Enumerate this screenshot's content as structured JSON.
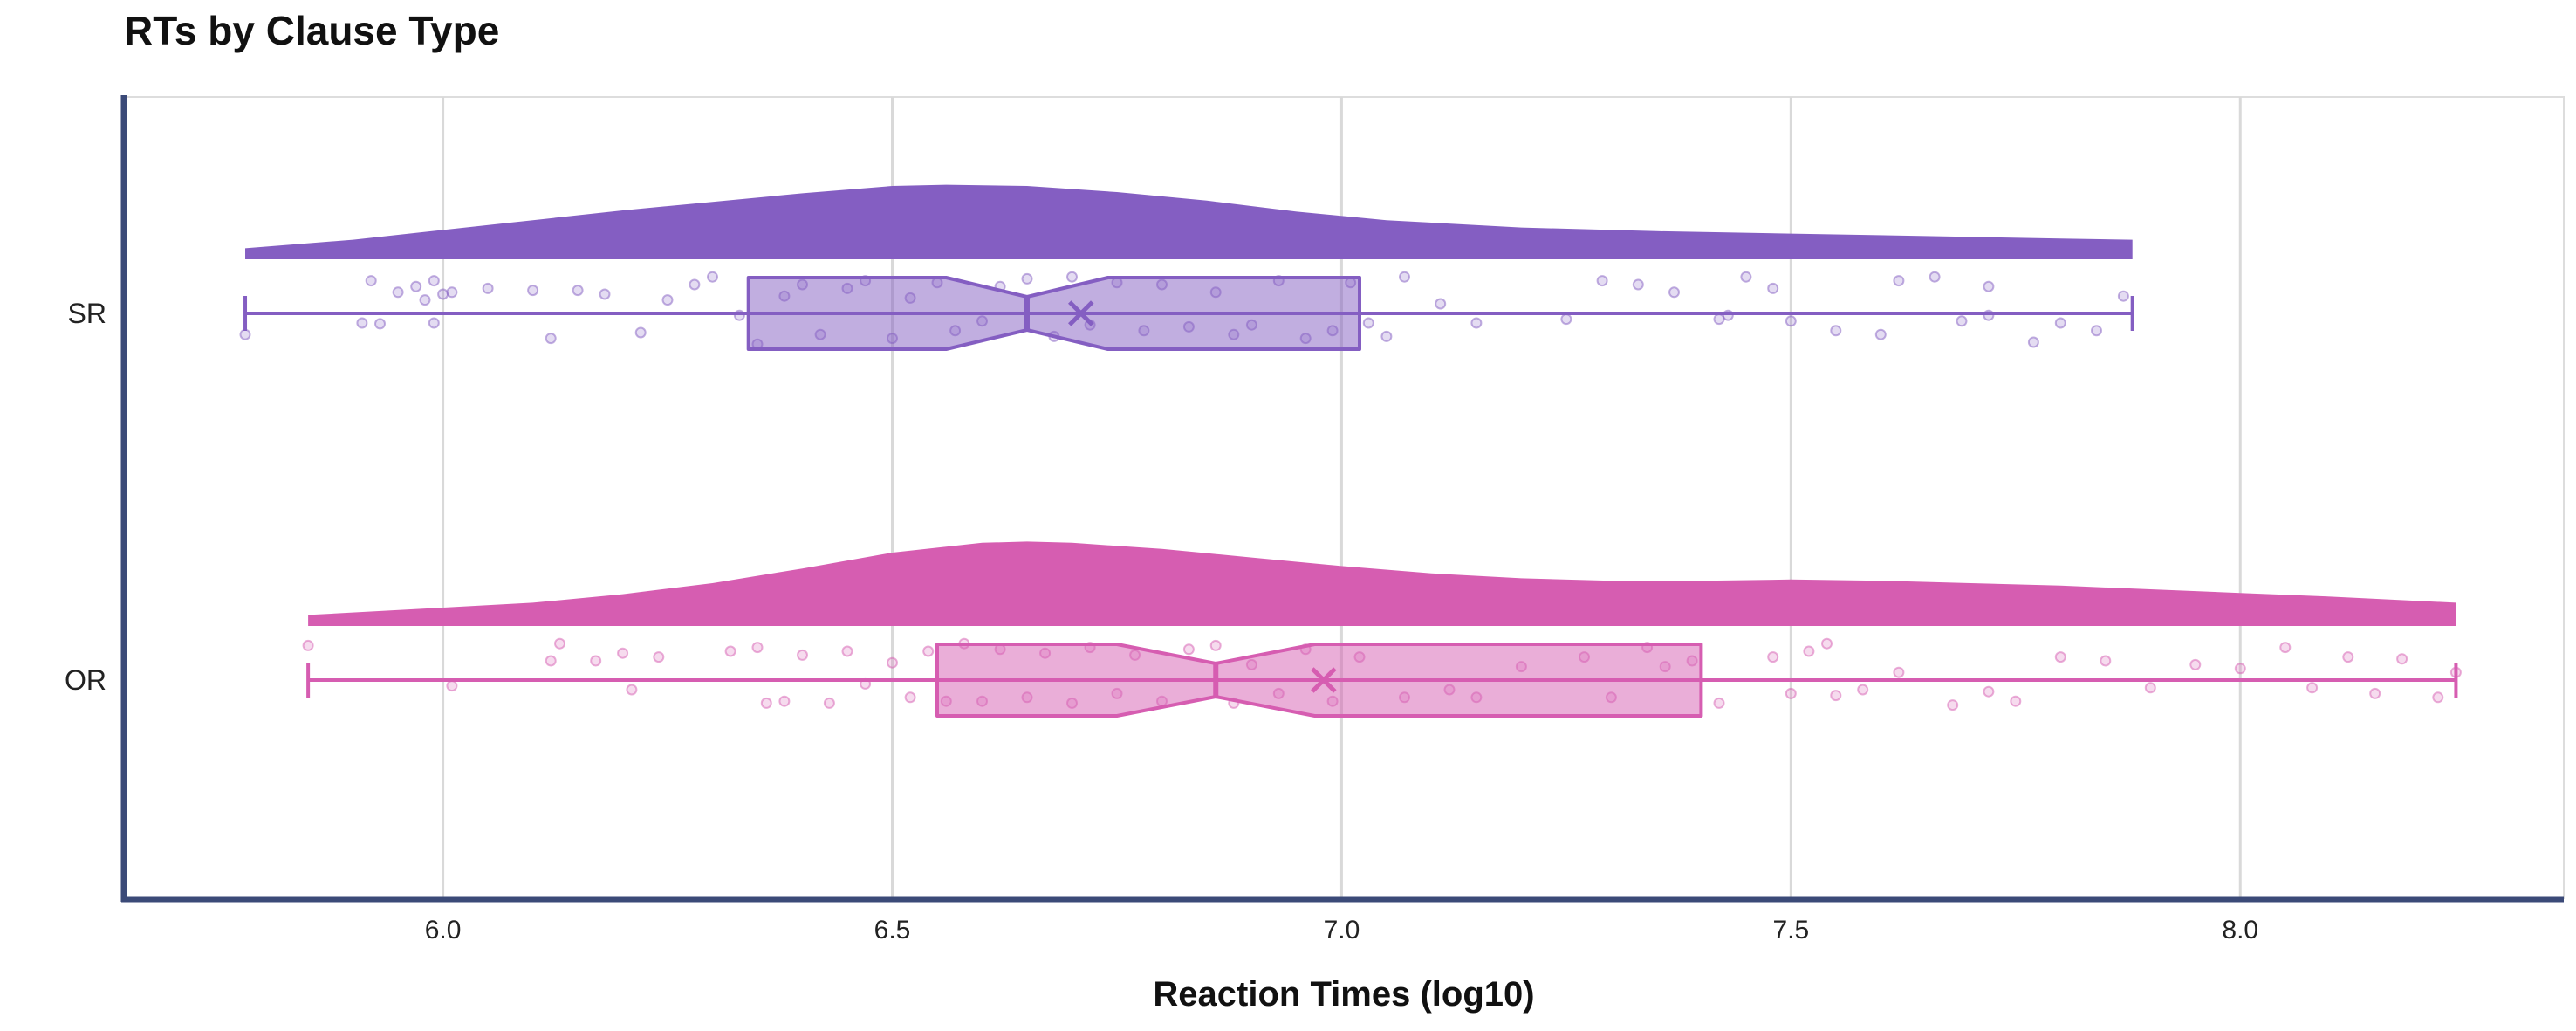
{
  "chart_data": {
    "type": "raincloud",
    "title": "RTs by Clause Type",
    "xlabel": "Reaction Times (log10)",
    "ylabel": "",
    "xlim": [
      5.645,
      8.36
    ],
    "xticks": [
      6.0,
      6.5,
      7.0,
      7.5,
      8.0
    ],
    "xtick_labels": [
      "6.0",
      "6.5",
      "7.0",
      "7.5",
      "8.0"
    ],
    "grid": true,
    "categories": [
      "SR",
      "OR"
    ],
    "series": [
      {
        "name": "SR",
        "color": "#845EC2",
        "box": {
          "min": 5.78,
          "q1": 6.34,
          "median": 6.65,
          "q3": 7.02,
          "max": 7.88,
          "mean": 6.71,
          "notch_low": 6.56,
          "notch_high": 6.74
        },
        "density": [
          [
            5.78,
            0.09
          ],
          [
            5.9,
            0.16
          ],
          [
            6.0,
            0.24
          ],
          [
            6.1,
            0.32
          ],
          [
            6.2,
            0.4
          ],
          [
            6.3,
            0.47
          ],
          [
            6.4,
            0.54
          ],
          [
            6.5,
            0.6
          ],
          [
            6.56,
            0.61
          ],
          [
            6.65,
            0.6
          ],
          [
            6.75,
            0.55
          ],
          [
            6.85,
            0.48
          ],
          [
            6.95,
            0.39
          ],
          [
            7.05,
            0.32
          ],
          [
            7.2,
            0.26
          ],
          [
            7.35,
            0.23
          ],
          [
            7.5,
            0.21
          ],
          [
            7.65,
            0.19
          ],
          [
            7.8,
            0.17
          ],
          [
            7.88,
            0.16
          ]
        ],
        "points": [
          [
            5.78,
            0.55
          ],
          [
            5.91,
            0.25
          ],
          [
            5.93,
            0.27
          ],
          [
            5.92,
            -0.85
          ],
          [
            5.95,
            -0.55
          ],
          [
            5.97,
            -0.7
          ],
          [
            5.99,
            0.25
          ],
          [
            5.98,
            -0.35
          ],
          [
            5.99,
            -0.85
          ],
          [
            6.0,
            -0.5
          ],
          [
            6.01,
            -0.55
          ],
          [
            6.05,
            -0.65
          ],
          [
            6.1,
            -0.6
          ],
          [
            6.12,
            0.65
          ],
          [
            6.15,
            -0.6
          ],
          [
            6.18,
            -0.5
          ],
          [
            6.22,
            0.5
          ],
          [
            6.25,
            -0.35
          ],
          [
            6.28,
            -0.75
          ],
          [
            6.3,
            -0.95
          ],
          [
            6.33,
            0.05
          ],
          [
            6.35,
            0.8
          ],
          [
            6.38,
            -0.45
          ],
          [
            6.4,
            -0.75
          ],
          [
            6.42,
            0.55
          ],
          [
            6.45,
            -0.65
          ],
          [
            6.47,
            -0.85
          ],
          [
            6.5,
            0.65
          ],
          [
            6.52,
            -0.4
          ],
          [
            6.55,
            -0.8
          ],
          [
            6.57,
            0.45
          ],
          [
            6.6,
            0.2
          ],
          [
            6.62,
            -0.7
          ],
          [
            6.65,
            -0.9
          ],
          [
            6.68,
            0.6
          ],
          [
            6.7,
            -0.95
          ],
          [
            6.72,
            0.3
          ],
          [
            6.75,
            -0.8
          ],
          [
            6.78,
            0.45
          ],
          [
            6.8,
            -0.75
          ],
          [
            6.83,
            0.35
          ],
          [
            6.86,
            -0.55
          ],
          [
            6.88,
            0.55
          ],
          [
            6.9,
            0.3
          ],
          [
            6.93,
            -0.85
          ],
          [
            6.96,
            0.65
          ],
          [
            6.99,
            0.45
          ],
          [
            7.01,
            -0.8
          ],
          [
            7.03,
            0.25
          ],
          [
            7.05,
            0.6
          ],
          [
            7.07,
            -0.95
          ],
          [
            7.11,
            -0.25
          ],
          [
            7.15,
            0.25
          ],
          [
            7.25,
            0.15
          ],
          [
            7.29,
            -0.85
          ],
          [
            7.33,
            -0.75
          ],
          [
            7.37,
            -0.55
          ],
          [
            7.42,
            0.15
          ],
          [
            7.43,
            0.05
          ],
          [
            7.45,
            -0.95
          ],
          [
            7.48,
            -0.65
          ],
          [
            7.5,
            0.2
          ],
          [
            7.55,
            0.45
          ],
          [
            7.6,
            0.55
          ],
          [
            7.62,
            -0.85
          ],
          [
            7.66,
            -0.95
          ],
          [
            7.69,
            0.2
          ],
          [
            7.72,
            0.05
          ],
          [
            7.72,
            -0.7
          ],
          [
            7.77,
            0.75
          ],
          [
            7.8,
            0.25
          ],
          [
            7.84,
            0.45
          ],
          [
            7.87,
            -0.45
          ]
        ]
      },
      {
        "name": "OR",
        "color": "#D65DB1",
        "box": {
          "min": 5.85,
          "q1": 6.55,
          "median": 6.86,
          "q3": 7.4,
          "max": 8.24,
          "mean": 6.98,
          "notch_low": 6.75,
          "notch_high": 6.97
        },
        "density": [
          [
            5.85,
            0.09
          ],
          [
            6.0,
            0.15
          ],
          [
            6.1,
            0.19
          ],
          [
            6.2,
            0.26
          ],
          [
            6.3,
            0.35
          ],
          [
            6.4,
            0.47
          ],
          [
            6.5,
            0.6
          ],
          [
            6.6,
            0.68
          ],
          [
            6.65,
            0.69
          ],
          [
            6.7,
            0.68
          ],
          [
            6.8,
            0.63
          ],
          [
            6.9,
            0.56
          ],
          [
            7.0,
            0.49
          ],
          [
            7.1,
            0.43
          ],
          [
            7.2,
            0.39
          ],
          [
            7.3,
            0.37
          ],
          [
            7.4,
            0.37
          ],
          [
            7.5,
            0.38
          ],
          [
            7.6,
            0.37
          ],
          [
            7.7,
            0.35
          ],
          [
            7.8,
            0.33
          ],
          [
            7.9,
            0.3
          ],
          [
            8.0,
            0.27
          ],
          [
            8.1,
            0.24
          ],
          [
            8.24,
            0.19
          ]
        ],
        "points": [
          [
            5.85,
            -0.9
          ],
          [
            6.01,
            0.15
          ],
          [
            6.12,
            -0.5
          ],
          [
            6.13,
            -0.95
          ],
          [
            6.17,
            -0.5
          ],
          [
            6.2,
            -0.7
          ],
          [
            6.21,
            0.25
          ],
          [
            6.24,
            -0.6
          ],
          [
            6.32,
            -0.75
          ],
          [
            6.35,
            -0.85
          ],
          [
            6.36,
            0.6
          ],
          [
            6.38,
            0.55
          ],
          [
            6.4,
            -0.65
          ],
          [
            6.43,
            0.6
          ],
          [
            6.45,
            -0.75
          ],
          [
            6.47,
            0.1
          ],
          [
            6.5,
            -0.45
          ],
          [
            6.52,
            0.45
          ],
          [
            6.54,
            -0.75
          ],
          [
            6.56,
            0.55
          ],
          [
            6.58,
            -0.95
          ],
          [
            6.6,
            0.55
          ],
          [
            6.62,
            -0.8
          ],
          [
            6.65,
            0.45
          ],
          [
            6.67,
            -0.7
          ],
          [
            6.7,
            0.6
          ],
          [
            6.72,
            -0.85
          ],
          [
            6.75,
            0.35
          ],
          [
            6.77,
            -0.65
          ],
          [
            6.8,
            0.55
          ],
          [
            6.83,
            -0.8
          ],
          [
            6.86,
            -0.9
          ],
          [
            6.88,
            0.6
          ],
          [
            6.9,
            -0.4
          ],
          [
            6.93,
            0.35
          ],
          [
            6.96,
            -0.8
          ],
          [
            6.99,
            0.55
          ],
          [
            7.02,
            -0.6
          ],
          [
            7.07,
            0.45
          ],
          [
            7.12,
            0.25
          ],
          [
            7.15,
            0.45
          ],
          [
            7.2,
            -0.35
          ],
          [
            7.27,
            -0.6
          ],
          [
            7.3,
            0.45
          ],
          [
            7.34,
            -0.85
          ],
          [
            7.36,
            -0.35
          ],
          [
            7.39,
            -0.5
          ],
          [
            7.42,
            0.6
          ],
          [
            7.48,
            -0.6
          ],
          [
            7.5,
            0.35
          ],
          [
            7.52,
            -0.75
          ],
          [
            7.54,
            -0.95
          ],
          [
            7.55,
            0.4
          ],
          [
            7.58,
            0.25
          ],
          [
            7.62,
            -0.2
          ],
          [
            7.68,
            0.65
          ],
          [
            7.72,
            0.3
          ],
          [
            7.75,
            0.55
          ],
          [
            7.8,
            -0.6
          ],
          [
            7.85,
            -0.5
          ],
          [
            7.9,
            0.2
          ],
          [
            7.95,
            -0.4
          ],
          [
            8.0,
            -0.3
          ],
          [
            8.05,
            -0.85
          ],
          [
            8.08,
            0.2
          ],
          [
            8.12,
            -0.6
          ],
          [
            8.15,
            0.35
          ],
          [
            8.18,
            -0.55
          ],
          [
            8.22,
            0.45
          ],
          [
            8.24,
            -0.2
          ]
        ]
      }
    ]
  }
}
